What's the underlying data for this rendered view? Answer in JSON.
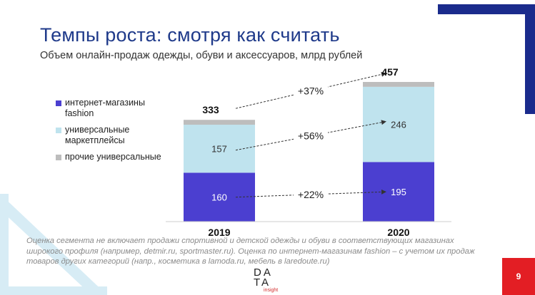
{
  "title": "Темпы роста: смотря как считать",
  "subtitle": "Объем онлайн-продаж одежды, обуви и аксессуаров, млрд  рублей",
  "legend": [
    {
      "label": "интернет-магазины fashion",
      "color": "#4b3fd0"
    },
    {
      "label": "универсальные маркетплейсы",
      "color": "#bfe3ee"
    },
    {
      "label": "прочие универсальные",
      "color": "#bdbdbd"
    }
  ],
  "chart_data": {
    "type": "bar",
    "stacked": true,
    "categories": [
      "2019",
      "2020"
    ],
    "series": [
      {
        "name": "интернет-магазины fashion",
        "values": [
          160,
          195
        ],
        "color": "#4b3fd0"
      },
      {
        "name": "универсальные маркетплейсы",
        "values": [
          157,
          246
        ],
        "color": "#bfe3ee"
      },
      {
        "name": "прочие универсальные",
        "values": [
          16,
          16
        ],
        "color": "#bdbdbd"
      }
    ],
    "segment_labels": [
      [
        "160",
        "157"
      ],
      [
        "195",
        "246"
      ]
    ],
    "totals": [
      "333",
      "457"
    ],
    "growth_labels": [
      "+37%",
      "+56%",
      "+22%"
    ],
    "ylim": [
      0,
      457
    ]
  },
  "note": "Оценка сегмента не включает продажи спортивной и детской одежды и обуви в соответствующих магазинах широкого профиля (например, detmir.ru, sportmaster.ru). Оценка по интернет-магазинам fashion – с учетом их продаж товаров других категорий (напр., косметика в lamoda.ru, мебель в laredoute.ru)",
  "logo": {
    "row1": "DA",
    "row2": "TA",
    "sub": "insight"
  },
  "page_number": "9",
  "colors": {
    "title": "#1f3a8a",
    "navy_corner": "#1a2b8c",
    "page_badge": "#e31e24",
    "light_blue_corner": "#cfe8f2"
  }
}
